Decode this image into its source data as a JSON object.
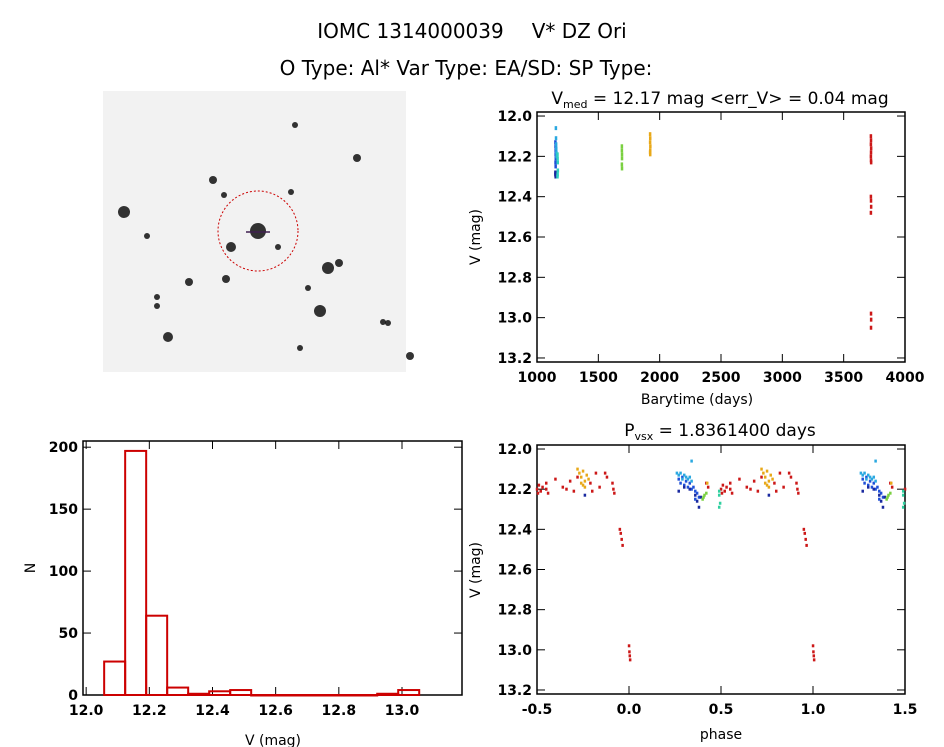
{
  "header": {
    "title_id": "IOMC 1314000039",
    "title_name": "V* DZ Ori",
    "subtitle": "O Type: Al*  Var Type: EA/SD:  SP Type:"
  },
  "colors": {
    "axis": "#000000",
    "hist": "#cc0000",
    "circle": "#cc0000"
  },
  "chart_data": [
    {
      "type": "image",
      "description_visible": "finder chart with red dashed circle around target star"
    },
    {
      "type": "scatter",
      "title_main": "V",
      "title_sub": "med",
      "title_rest": " = 12.17 mag <err_V> = 0.04 mag",
      "xlabel": "Barytime (days)",
      "ylabel": "V (mag)",
      "xlim": [
        1000,
        4000
      ],
      "ylim": [
        13.22,
        11.98
      ],
      "xticks": [
        1000,
        1500,
        2000,
        2500,
        3000,
        3500,
        4000
      ],
      "yticks": [
        "12.0",
        "12.2",
        "12.4",
        "12.6",
        "12.8",
        "13.0",
        "13.2"
      ],
      "series": [
        {
          "color": "#1a2aa0",
          "x": [
            1148,
            1148,
            1150,
            1150
          ],
          "y": [
            12.28,
            12.29,
            12.3,
            12.285
          ]
        },
        {
          "color": "#1f50d8",
          "x": [
            1148,
            1149,
            1150,
            1150,
            1151,
            1149,
            1150
          ],
          "y": [
            12.13,
            12.15,
            12.17,
            12.19,
            12.21,
            12.23,
            12.25
          ]
        },
        {
          "color": "#2aa8e0",
          "x": [
            1152,
            1153,
            1154,
            1155,
            1156,
            1157
          ],
          "y": [
            12.06,
            12.11,
            12.14,
            12.16,
            12.18,
            12.2
          ]
        },
        {
          "color": "#30d0c0",
          "x": [
            1165,
            1166,
            1167,
            1168,
            1166,
            1165
          ],
          "y": [
            12.19,
            12.21,
            12.23,
            12.27,
            12.29,
            12.3
          ]
        },
        {
          "color": "#7ad040",
          "x": [
            1690,
            1690,
            1691,
            1691,
            1690,
            1691
          ],
          "y": [
            12.15,
            12.17,
            12.19,
            12.21,
            12.24,
            12.26
          ]
        },
        {
          "color": "#e8a818",
          "x": [
            1920,
            1921,
            1920,
            1922,
            1921,
            1920,
            1921
          ],
          "y": [
            12.09,
            12.11,
            12.13,
            12.15,
            12.17,
            12.18,
            12.19
          ]
        },
        {
          "color": "#cc1818",
          "x": [
            3720,
            3721,
            3720,
            3722,
            3721,
            3720,
            3721,
            3722,
            3720,
            3721,
            3722,
            3720,
            3721,
            3722,
            3721
          ],
          "y": [
            12.1,
            12.12,
            12.14,
            12.16,
            12.18,
            12.2,
            12.22,
            12.23,
            12.4,
            12.42,
            12.45,
            12.48,
            12.98,
            13.01,
            13.05
          ]
        }
      ]
    },
    {
      "type": "bar",
      "xlabel": "V (mag)",
      "ylabel": "N",
      "xlim": [
        11.99,
        13.19
      ],
      "ylim": [
        0,
        205
      ],
      "xticks": [
        "12.0",
        "12.2",
        "12.4",
        "12.6",
        "12.8",
        "13.0"
      ],
      "yticks": [
        0,
        50,
        100,
        150,
        200
      ],
      "bin_start": 12.057,
      "bin_width": 0.0665,
      "values": [
        27,
        197,
        64,
        6,
        1,
        3,
        4,
        0,
        0,
        0,
        0,
        0,
        0,
        1,
        4
      ]
    },
    {
      "type": "scatter",
      "title_main": "P",
      "title_sub": "vsx",
      "title_rest": " = 1.8361400 days",
      "xlabel": "phase",
      "ylabel": "V (mag)",
      "xlim": [
        -0.5,
        1.5
      ],
      "ylim": [
        13.22,
        11.98
      ],
      "xticks": [
        "-0.5",
        "0.0",
        "0.5",
        "1.0",
        "1.5"
      ],
      "yticks": [
        "12.0",
        "12.2",
        "12.4",
        "12.6",
        "12.8",
        "13.0",
        "13.2"
      ],
      "series": [
        {
          "color": "#cc1818",
          "points": [
            [
              0.0,
              12.98
            ],
            [
              0.002,
              13.01
            ],
            [
              0.004,
              13.03
            ],
            [
              0.006,
              13.05
            ],
            [
              0.95,
              12.4
            ],
            [
              0.955,
              12.42
            ],
            [
              0.96,
              12.45
            ],
            [
              0.965,
              12.48
            ],
            [
              0.51,
              12.18
            ],
            [
              0.52,
              12.21
            ],
            [
              0.55,
              12.17
            ],
            [
              0.56,
              12.22
            ],
            [
              0.6,
              12.15
            ],
            [
              0.64,
              12.19
            ],
            [
              0.66,
              12.2
            ],
            [
              0.68,
              12.16
            ],
            [
              0.7,
              12.21
            ],
            [
              0.72,
              12.14
            ],
            [
              0.79,
              12.17
            ],
            [
              0.8,
              12.21
            ],
            [
              0.82,
              12.12
            ],
            [
              0.84,
              12.19
            ],
            [
              0.87,
              12.12
            ],
            [
              0.88,
              12.14
            ],
            [
              0.91,
              12.17
            ],
            [
              0.915,
              12.2
            ],
            [
              0.92,
              12.22
            ],
            [
              0.42,
              12.17
            ],
            [
              0.43,
              12.19
            ],
            [
              0.5,
              12.2
            ],
            [
              0.505,
              12.22
            ],
            [
              0.53,
              12.19
            ],
            [
              0.55,
              12.2
            ]
          ]
        },
        {
          "color": "#e8a818",
          "points": [
            [
              0.72,
              12.1
            ],
            [
              0.73,
              12.12
            ],
            [
              0.74,
              12.14
            ],
            [
              0.75,
              12.11
            ],
            [
              0.76,
              12.16
            ],
            [
              0.75,
              12.18
            ],
            [
              0.77,
              12.13
            ],
            [
              0.74,
              12.17
            ],
            [
              0.76,
              12.19
            ],
            [
              0.78,
              12.15
            ],
            [
              0.425,
              12.17
            ]
          ]
        },
        {
          "color": "#1f50d8",
          "points": [
            [
              0.27,
              12.15
            ],
            [
              0.28,
              12.17
            ],
            [
              0.29,
              12.14
            ],
            [
              0.3,
              12.18
            ],
            [
              0.31,
              12.16
            ],
            [
              0.32,
              12.19
            ],
            [
              0.33,
              12.17
            ],
            [
              0.34,
              12.2
            ],
            [
              0.35,
              12.19
            ],
            [
              0.36,
              12.21
            ],
            [
              0.37,
              12.22
            ],
            [
              0.38,
              12.24
            ],
            [
              0.36,
              12.25
            ]
          ]
        },
        {
          "color": "#2aa8e0",
          "points": [
            [
              0.26,
              12.12
            ],
            [
              0.27,
              12.13
            ],
            [
              0.28,
              12.12
            ],
            [
              0.29,
              12.15
            ],
            [
              0.3,
              12.13
            ],
            [
              0.31,
              12.14
            ],
            [
              0.32,
              12.15
            ],
            [
              0.33,
              12.14
            ],
            [
              0.34,
              12.06
            ],
            [
              0.34,
              12.16
            ]
          ]
        },
        {
          "color": "#1a2aa0",
          "points": [
            [
              0.27,
              12.21
            ],
            [
              0.3,
              12.19
            ],
            [
              0.33,
              12.2
            ],
            [
              0.36,
              12.23
            ],
            [
              0.37,
              12.26
            ],
            [
              0.38,
              12.29
            ],
            [
              0.39,
              12.24
            ],
            [
              0.76,
              12.23
            ]
          ]
        },
        {
          "color": "#7ad040",
          "points": [
            [
              0.4,
              12.25
            ],
            [
              0.41,
              12.23
            ],
            [
              0.42,
              12.22
            ],
            [
              0.405,
              12.24
            ]
          ]
        },
        {
          "color": "#30d0a0",
          "points": [
            [
              0.49,
              12.21
            ],
            [
              0.49,
              12.23
            ],
            [
              0.495,
              12.27
            ],
            [
              0.49,
              12.29
            ]
          ]
        }
      ]
    }
  ]
}
